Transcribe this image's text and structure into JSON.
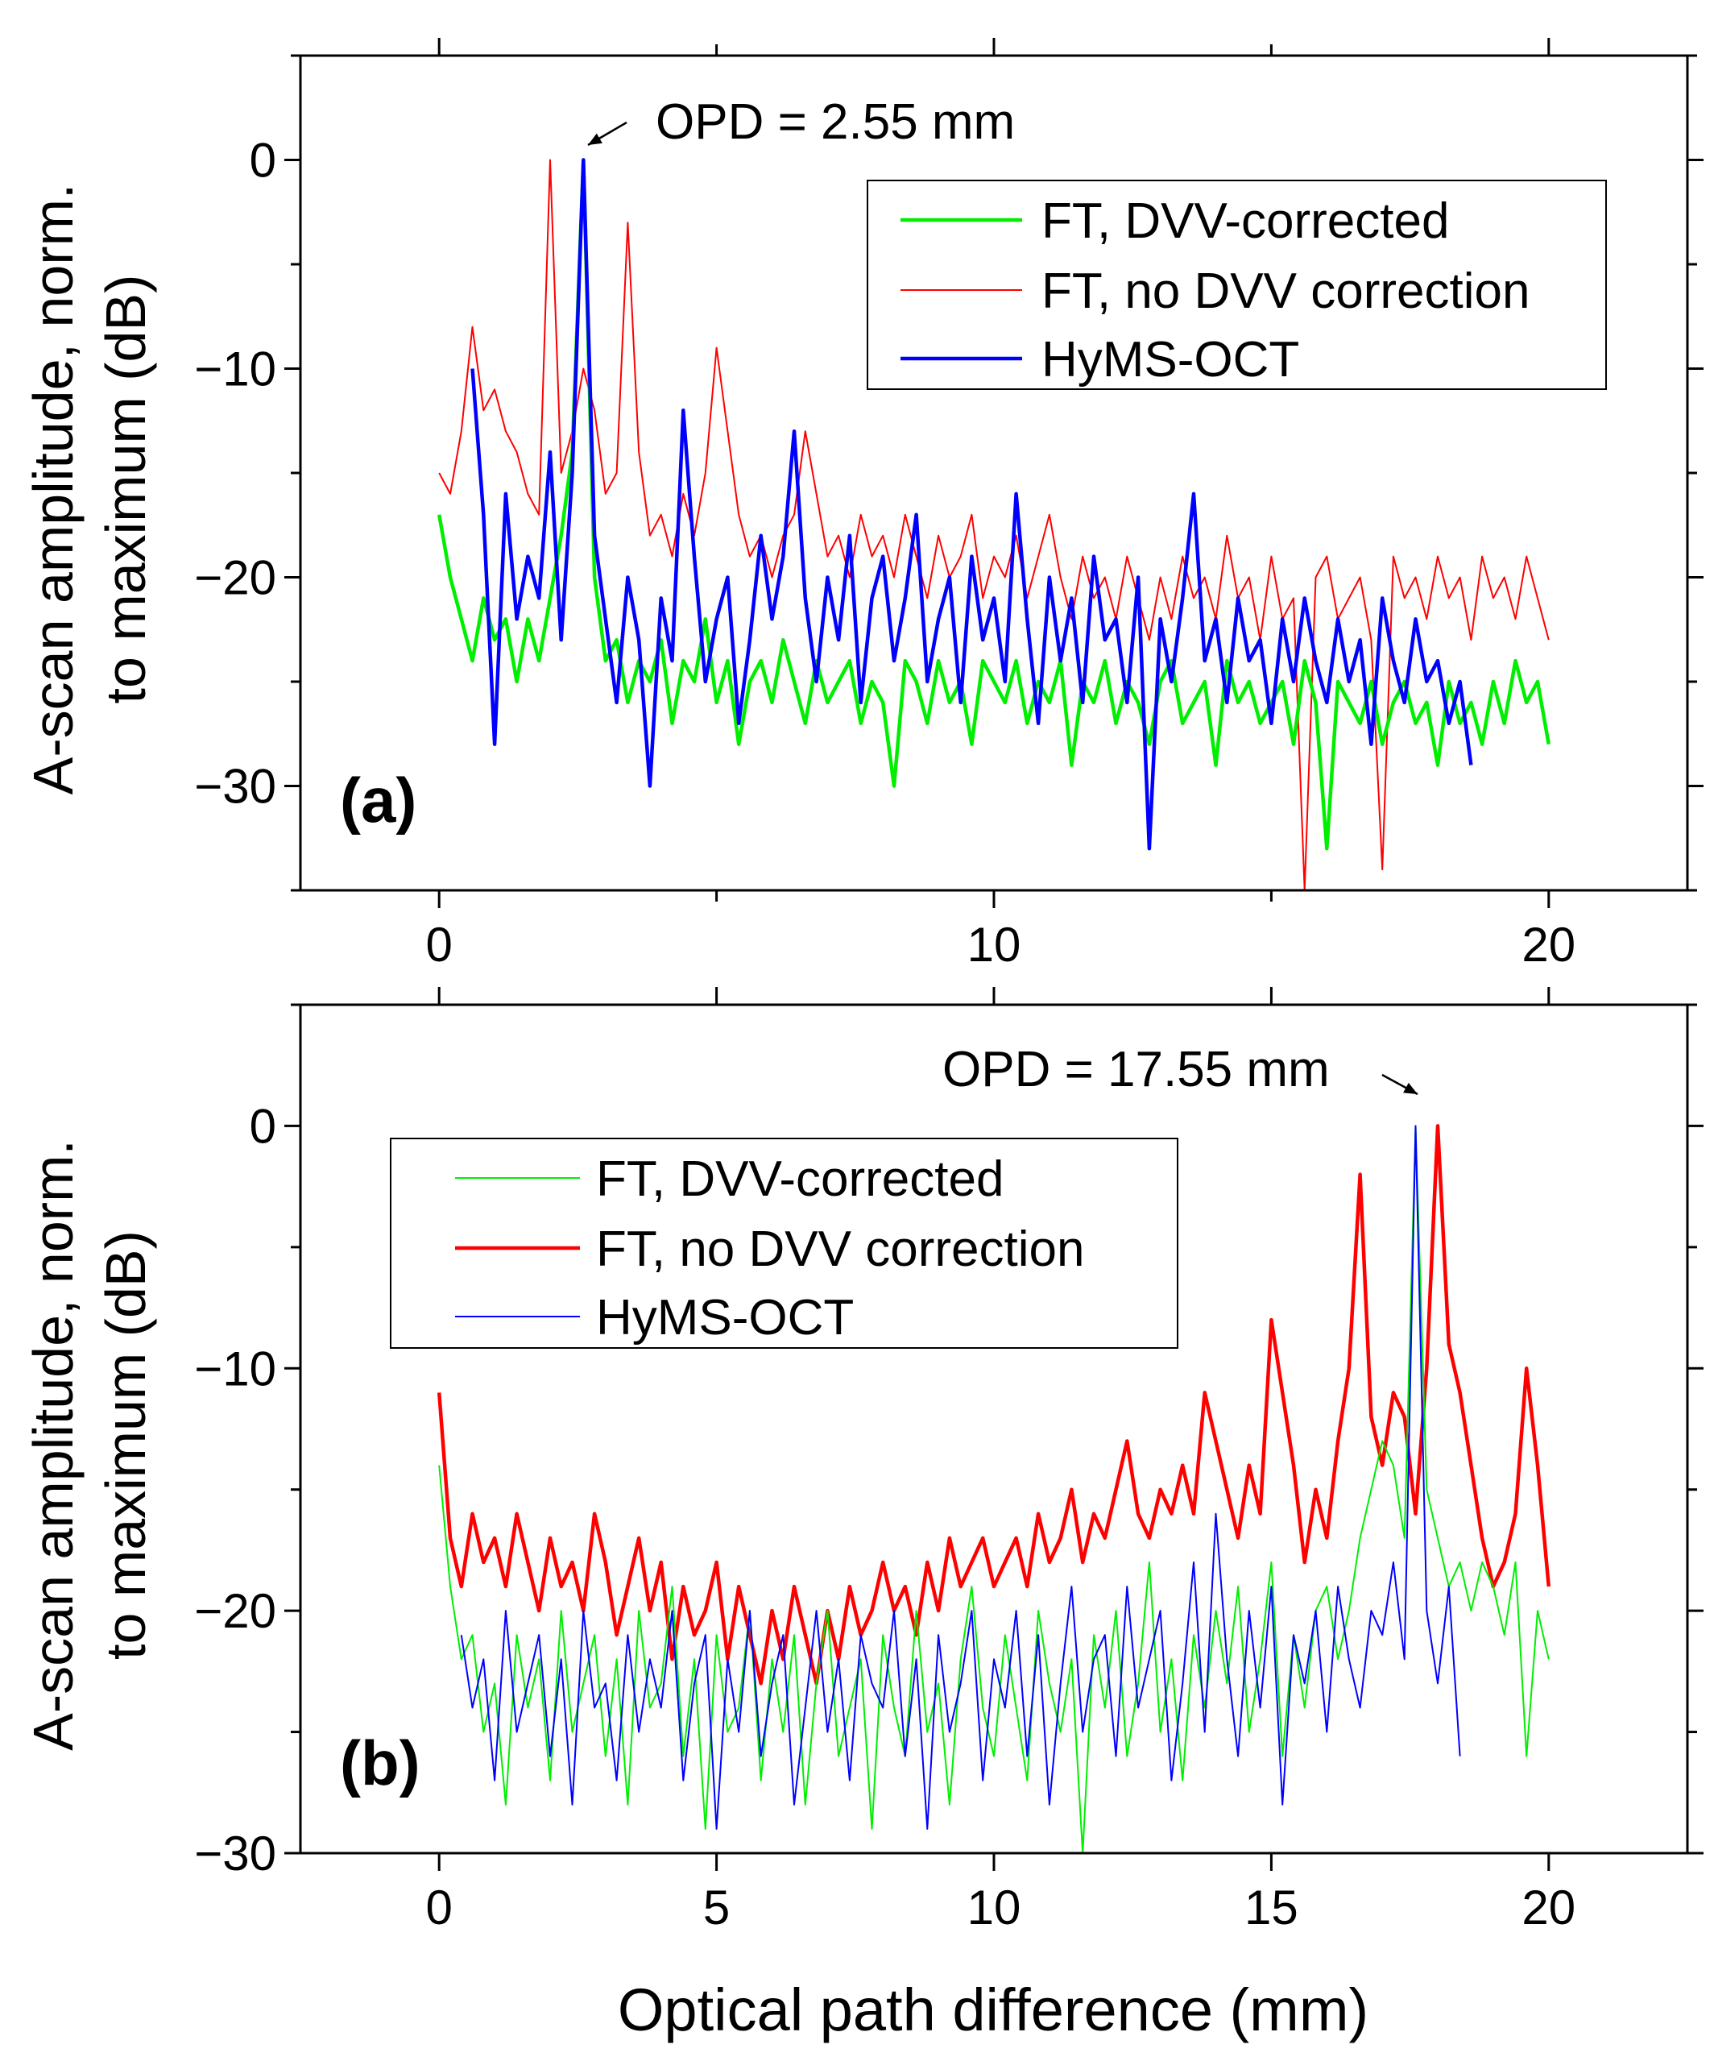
{
  "chart_data": [
    {
      "type": "line",
      "panel_label": "(a)",
      "annotation": "OPD = 2.55 mm",
      "annotation_target": [
        2.55,
        0
      ],
      "xlim": [
        -2.5,
        22.5
      ],
      "ylim": [
        -35,
        5
      ],
      "xticks": [
        0,
        10,
        20
      ],
      "xticks_minor": [
        5,
        15
      ],
      "yticks": [
        0,
        -10,
        -20,
        -30
      ],
      "ytick_labels": [
        "0",
        "−10",
        "−20",
        "−30"
      ],
      "xtick_labels": [
        "0",
        "10",
        "20"
      ],
      "ylabel_line1": "A-scan amplitude, norm.",
      "ylabel_line2": "to maximum (dB)",
      "x_start": 0,
      "x_step": 0.2,
      "legend_position": "top-right",
      "series": [
        {
          "name": "FT, DVV-corrected",
          "color": "#00ee00",
          "width": "thick",
          "values": [
            -17,
            -20,
            -22,
            -24,
            -21,
            -23,
            -22,
            -25,
            -22,
            -24,
            -21,
            -18,
            -14,
            0,
            -20,
            -24,
            -23,
            -26,
            -24,
            -25,
            -23,
            -27,
            -24,
            -25,
            -22,
            -26,
            -24,
            -28,
            -25,
            -24,
            -26,
            -23,
            -25,
            -27,
            -24,
            -26,
            -25,
            -24,
            -27,
            -25,
            -26,
            -30,
            -24,
            -25,
            -27,
            -24,
            -26,
            -25,
            -28,
            -24,
            -25,
            -26,
            -24,
            -27,
            -25,
            -26,
            -24,
            -29,
            -25,
            -26,
            -24,
            -27,
            -25,
            -26,
            -28,
            -25,
            -24,
            -27,
            -26,
            -25,
            -29,
            -24,
            -26,
            -25,
            -27,
            -26,
            -25,
            -28,
            -24,
            -26,
            -33,
            -25,
            -26,
            -27,
            -25,
            -28,
            -26,
            -25,
            -27,
            -26,
            -29,
            -25,
            -27,
            -26,
            -28,
            -25,
            -27,
            -24,
            -26,
            -25,
            -28
          ]
        },
        {
          "name": "FT, no DVV correction",
          "color": "#ff0000",
          "width": "thin",
          "values": [
            -15,
            -16,
            -13,
            -8,
            -12,
            -11,
            -13,
            -14,
            -16,
            -17,
            0,
            -15,
            -13,
            -10,
            -12,
            -16,
            -15,
            -3,
            -14,
            -18,
            -17,
            -19,
            -16,
            -18,
            -15,
            -9,
            -13,
            -17,
            -19,
            -18,
            -20,
            -18,
            -17,
            -13,
            -16,
            -19,
            -18,
            -20,
            -17,
            -19,
            -18,
            -20,
            -17,
            -19,
            -21,
            -18,
            -20,
            -19,
            -17,
            -21,
            -19,
            -20,
            -18,
            -21,
            -19,
            -17,
            -20,
            -22,
            -19,
            -21,
            -20,
            -22,
            -19,
            -21,
            -23,
            -20,
            -22,
            -19,
            -21,
            -20,
            -22,
            -18,
            -21,
            -20,
            -23,
            -19,
            -22,
            -21,
            -35,
            -20,
            -19,
            -22,
            -21,
            -20,
            -23,
            -34,
            -19,
            -21,
            -20,
            -22,
            -19,
            -21,
            -20,
            -23,
            -19,
            -21,
            -20,
            -22,
            -19,
            -21,
            -23
          ]
        },
        {
          "name": "HyMS-OCT",
          "color": "#0000ff",
          "width": "thick",
          "values": [
            null,
            null,
            null,
            -10,
            -17,
            -28,
            -16,
            -22,
            -19,
            -21,
            -14,
            -23,
            -15,
            0,
            -18,
            -22,
            -26,
            -20,
            -23,
            -30,
            -21,
            -24,
            -12,
            -19,
            -25,
            -22,
            -20,
            -27,
            -23,
            -18,
            -22,
            -19,
            -13,
            -21,
            -25,
            -20,
            -23,
            -18,
            -26,
            -21,
            -19,
            -24,
            -21,
            -17,
            -25,
            -22,
            -20,
            -26,
            -19,
            -23,
            -21,
            -25,
            -16,
            -22,
            -27,
            -20,
            -24,
            -21,
            -26,
            -19,
            -23,
            -22,
            -26,
            -20,
            -33,
            -22,
            -25,
            -21,
            -16,
            -24,
            -22,
            -26,
            -21,
            -24,
            -23,
            -27,
            -22,
            -25,
            -21,
            -24,
            -26,
            -22,
            -25,
            -23,
            -28,
            -21,
            -24,
            -26,
            -22,
            -25,
            -24,
            -27,
            -25,
            -29,
            null,
            null,
            null,
            null,
            null,
            null,
            null
          ]
        }
      ]
    },
    {
      "type": "line",
      "panel_label": "(b)",
      "annotation": "OPD = 17.55 mm",
      "annotation_target": [
        17.55,
        0
      ],
      "xlim": [
        -2.5,
        22.5
      ],
      "ylim": [
        -30,
        5
      ],
      "xticks": [
        0,
        5,
        10,
        15,
        20
      ],
      "xticks_minor": [],
      "yticks": [
        0,
        -10,
        -20,
        -30
      ],
      "ytick_labels": [
        "0",
        "−10",
        "−20",
        "−30"
      ],
      "xtick_labels": [
        "0",
        "5",
        "10",
        "15",
        "20"
      ],
      "ylabel_line1": "A-scan amplitude, norm.",
      "ylabel_line2": "to maximum (dB)",
      "xlabel": "Optical path difference (mm)",
      "x_start": 0,
      "x_step": 0.2,
      "legend_position": "top-left",
      "series": [
        {
          "name": "FT, DVV-corrected",
          "color": "#00ee00",
          "width": "thin",
          "values": [
            -14,
            -19,
            -22,
            -21,
            -25,
            -23,
            -28,
            -21,
            -24,
            -22,
            -27,
            -20,
            -25,
            -23,
            -21,
            -26,
            -22,
            -28,
            -20,
            -24,
            -23,
            -19,
            -26,
            -22,
            -29,
            -21,
            -25,
            -24,
            -20,
            -27,
            -22,
            -25,
            -21,
            -28,
            -23,
            -20,
            -26,
            -24,
            -22,
            -29,
            -21,
            -24,
            -26,
            -20,
            -25,
            -23,
            -28,
            -22,
            -19,
            -24,
            -26,
            -21,
            -24,
            -27,
            -20,
            -23,
            -25,
            -22,
            -30,
            -21,
            -24,
            -20,
            -26,
            -23,
            -18,
            -25,
            -22,
            -27,
            -21,
            -24,
            -20,
            -23,
            -19,
            -25,
            -22,
            -18,
            -26,
            -21,
            -24,
            -20,
            -19,
            -22,
            -20,
            -17,
            -15,
            -13,
            -14,
            -17,
            0,
            -15,
            -17,
            -19,
            -18,
            -20,
            -18,
            -19,
            -21,
            -18,
            -26,
            -20,
            -22
          ]
        },
        {
          "name": "FT, no DVV correction",
          "color": "#ff0000",
          "width": "thick",
          "values": [
            -11,
            -17,
            -19,
            -16,
            -18,
            -17,
            -19,
            -16,
            -18,
            -20,
            -17,
            -19,
            -18,
            -20,
            -16,
            -18,
            -21,
            -19,
            -17,
            -20,
            -18,
            -22,
            -19,
            -21,
            -20,
            -18,
            -22,
            -19,
            -21,
            -23,
            -20,
            -22,
            -19,
            -21,
            -23,
            -20,
            -22,
            -19,
            -21,
            -20,
            -18,
            -20,
            -19,
            -21,
            -18,
            -20,
            -17,
            -19,
            -18,
            -17,
            -19,
            -18,
            -17,
            -19,
            -16,
            -18,
            -17,
            -15,
            -18,
            -16,
            -17,
            -15,
            -13,
            -16,
            -17,
            -15,
            -16,
            -14,
            -16,
            -11,
            -13,
            -15,
            -17,
            -14,
            -16,
            -8,
            -11,
            -14,
            -18,
            -15,
            -17,
            -13,
            -10,
            -2,
            -12,
            -14,
            -11,
            -12,
            -16,
            -10,
            0,
            -9,
            -11,
            -14,
            -17,
            -19,
            -18,
            -16,
            -10,
            -14,
            -19
          ]
        },
        {
          "name": "HyMS-OCT",
          "color": "#0000ff",
          "width": "thin",
          "values": [
            null,
            null,
            -21,
            -24,
            -22,
            -27,
            -20,
            -25,
            -23,
            -21,
            -26,
            -22,
            -28,
            -20,
            -24,
            -23,
            -27,
            -21,
            -25,
            -22,
            -24,
            -20,
            -27,
            -23,
            -21,
            -29,
            -22,
            -25,
            -20,
            -26,
            -23,
            -21,
            -28,
            -24,
            -20,
            -25,
            -22,
            -27,
            -21,
            -23,
            -24,
            -20,
            -26,
            -22,
            -29,
            -21,
            -25,
            -23,
            -20,
            -27,
            -22,
            -24,
            -20,
            -26,
            -21,
            -28,
            -23,
            -19,
            -25,
            -22,
            -21,
            -26,
            -19,
            -24,
            -22,
            -20,
            -27,
            -23,
            -18,
            -25,
            -16,
            -22,
            -26,
            -20,
            -24,
            -19,
            -28,
            -21,
            -23,
            -20,
            -25,
            -19,
            -22,
            -24,
            -20,
            -21,
            -18,
            -22,
            0,
            -20,
            -23,
            -19,
            -26,
            null,
            null,
            null,
            null,
            null,
            null,
            null,
            null
          ]
        }
      ]
    }
  ]
}
